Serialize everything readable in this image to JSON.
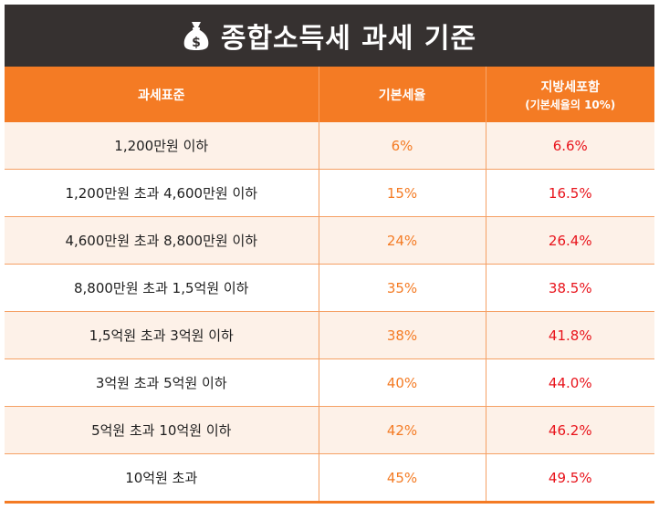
{
  "title": "종합소득세 과세 기준",
  "title_icon": "money-bag-icon",
  "colors": {
    "header_bg": "#363130",
    "accent": "#f47b24",
    "local_rate_text": "#e8131b",
    "row_tint": "#fdf1e8"
  },
  "columns": {
    "tax_base": "과세표준",
    "base_rate": "기본세율",
    "local_rate": "지방세포함",
    "local_rate_note": "(기본세율의 10%)"
  },
  "rows": [
    {
      "tax_base": "1,200만원 이하",
      "base_rate": "6%",
      "local_rate": "6.6%"
    },
    {
      "tax_base": "1,200만원 초과 4,600만원 이하",
      "base_rate": "15%",
      "local_rate": "16.5%"
    },
    {
      "tax_base": "4,600만원 초과 8,800만원 이하",
      "base_rate": "24%",
      "local_rate": "26.4%"
    },
    {
      "tax_base": "8,800만원 초과 1,5억원 이하",
      "base_rate": "35%",
      "local_rate": "38.5%"
    },
    {
      "tax_base": "1,5억원 초과 3억원 이하",
      "base_rate": "38%",
      "local_rate": "41.8%"
    },
    {
      "tax_base": "3억원 초과 5억원 이하",
      "base_rate": "40%",
      "local_rate": "44.0%"
    },
    {
      "tax_base": "5억원 초과 10억원 이하",
      "base_rate": "42%",
      "local_rate": "46.2%"
    },
    {
      "tax_base": "10억원 초과",
      "base_rate": "45%",
      "local_rate": "49.5%"
    }
  ]
}
